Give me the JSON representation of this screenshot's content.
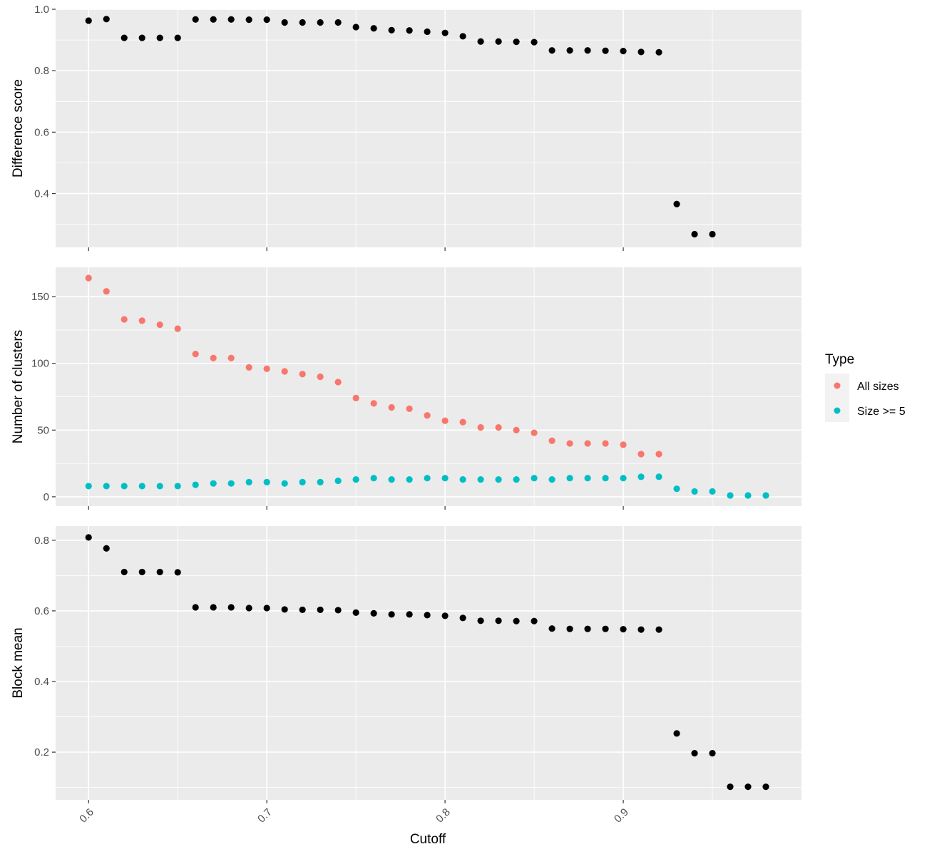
{
  "colors": {
    "all_sizes": "#F8766D",
    "size_ge_5": "#00BFC4",
    "single": "#000000"
  },
  "chart_data": [
    {
      "type": "scatter",
      "ylabel": "Difference score",
      "ylim": [
        0.225,
        1.0
      ],
      "yticks": [
        0.4,
        0.6,
        0.8,
        1.0
      ],
      "ytick_labels": [
        "0.4",
        "0.6",
        "0.8",
        "1.0"
      ],
      "series": [
        {
          "x": [
            0.6,
            0.61,
            0.62,
            0.63,
            0.64,
            0.65,
            0.66,
            0.67,
            0.68,
            0.69,
            0.7,
            0.71,
            0.72,
            0.73,
            0.74,
            0.75,
            0.76,
            0.77,
            0.78,
            0.79,
            0.8,
            0.81,
            0.82,
            0.83,
            0.84,
            0.85,
            0.86,
            0.87,
            0.88,
            0.89,
            0.9,
            0.91,
            0.92,
            0.93,
            0.94,
            0.95
          ],
          "y": [
            0.963,
            0.968,
            0.907,
            0.907,
            0.907,
            0.907,
            0.967,
            0.967,
            0.967,
            0.966,
            0.966,
            0.957,
            0.957,
            0.957,
            0.957,
            0.942,
            0.938,
            0.932,
            0.931,
            0.927,
            0.923,
            0.912,
            0.895,
            0.895,
            0.894,
            0.893,
            0.866,
            0.866,
            0.866,
            0.865,
            0.864,
            0.861,
            0.86,
            0.366,
            0.268,
            0.268
          ]
        }
      ]
    },
    {
      "type": "scatter",
      "ylabel": "Number of clusters",
      "ylim": [
        -7,
        172
      ],
      "yticks": [
        0,
        50,
        100,
        150
      ],
      "ytick_labels": [
        "0",
        "50",
        "100",
        "150"
      ],
      "series": [
        {
          "name": "All sizes",
          "x": [
            0.6,
            0.61,
            0.62,
            0.63,
            0.64,
            0.65,
            0.66,
            0.67,
            0.68,
            0.69,
            0.7,
            0.71,
            0.72,
            0.73,
            0.74,
            0.75,
            0.76,
            0.77,
            0.78,
            0.79,
            0.8,
            0.81,
            0.82,
            0.83,
            0.84,
            0.85,
            0.86,
            0.87,
            0.88,
            0.89,
            0.9,
            0.91,
            0.92
          ],
          "y": [
            164,
            154,
            133,
            132,
            129,
            126,
            107,
            104,
            104,
            97,
            96,
            94,
            92,
            90,
            86,
            74,
            70,
            67,
            66,
            61,
            57,
            56,
            52,
            52,
            50,
            48,
            42,
            40,
            40,
            40,
            39,
            32,
            32
          ]
        },
        {
          "name": "Size >= 5",
          "x": [
            0.6,
            0.61,
            0.62,
            0.63,
            0.64,
            0.65,
            0.66,
            0.67,
            0.68,
            0.69,
            0.7,
            0.71,
            0.72,
            0.73,
            0.74,
            0.75,
            0.76,
            0.77,
            0.78,
            0.79,
            0.8,
            0.81,
            0.82,
            0.83,
            0.84,
            0.85,
            0.86,
            0.87,
            0.88,
            0.89,
            0.9,
            0.91,
            0.92,
            0.93,
            0.94,
            0.95,
            0.96,
            0.97,
            0.98
          ],
          "y": [
            8,
            8,
            8,
            8,
            8,
            8,
            9,
            10,
            10,
            11,
            11,
            10,
            11,
            11,
            12,
            13,
            14,
            13,
            13,
            14,
            14,
            13,
            13,
            13,
            13,
            14,
            13,
            14,
            14,
            14,
            14,
            15,
            15,
            6,
            4,
            4,
            1,
            1,
            1
          ]
        }
      ]
    },
    {
      "type": "scatter",
      "ylabel": "Block mean",
      "ylim": [
        0.065,
        0.84
      ],
      "yticks": [
        0.2,
        0.4,
        0.6,
        0.8
      ],
      "ytick_labels": [
        "0.2",
        "0.4",
        "0.6",
        "0.8"
      ],
      "series": [
        {
          "x": [
            0.6,
            0.61,
            0.62,
            0.63,
            0.64,
            0.65,
            0.66,
            0.67,
            0.68,
            0.69,
            0.7,
            0.71,
            0.72,
            0.73,
            0.74,
            0.75,
            0.76,
            0.77,
            0.78,
            0.79,
            0.8,
            0.81,
            0.82,
            0.83,
            0.84,
            0.85,
            0.86,
            0.87,
            0.88,
            0.89,
            0.9,
            0.91,
            0.92,
            0.93,
            0.94,
            0.95,
            0.96,
            0.97,
            0.98
          ],
          "y": [
            0.808,
            0.777,
            0.71,
            0.71,
            0.71,
            0.709,
            0.61,
            0.61,
            0.61,
            0.608,
            0.608,
            0.604,
            0.603,
            0.603,
            0.602,
            0.595,
            0.593,
            0.59,
            0.59,
            0.588,
            0.586,
            0.58,
            0.572,
            0.572,
            0.571,
            0.571,
            0.55,
            0.549,
            0.549,
            0.549,
            0.548,
            0.547,
            0.547,
            0.253,
            0.197,
            0.197,
            0.102,
            0.102,
            0.102
          ]
        }
      ]
    }
  ],
  "x_axis": {
    "label": "Cutoff",
    "xlim": [
      0.5815,
      1.0
    ]
  },
  "x_ticks": [
    0.6,
    0.7,
    0.8,
    0.9
  ],
  "x_tick_labels": [
    "0.6",
    "0.7",
    "0.8",
    "0.9"
  ],
  "legend": {
    "title": "Type",
    "position": "right",
    "items": [
      {
        "label": "All sizes",
        "color": "#F8766D"
      },
      {
        "label": "Size >= 5",
        "color": "#00BFC4"
      }
    ]
  }
}
